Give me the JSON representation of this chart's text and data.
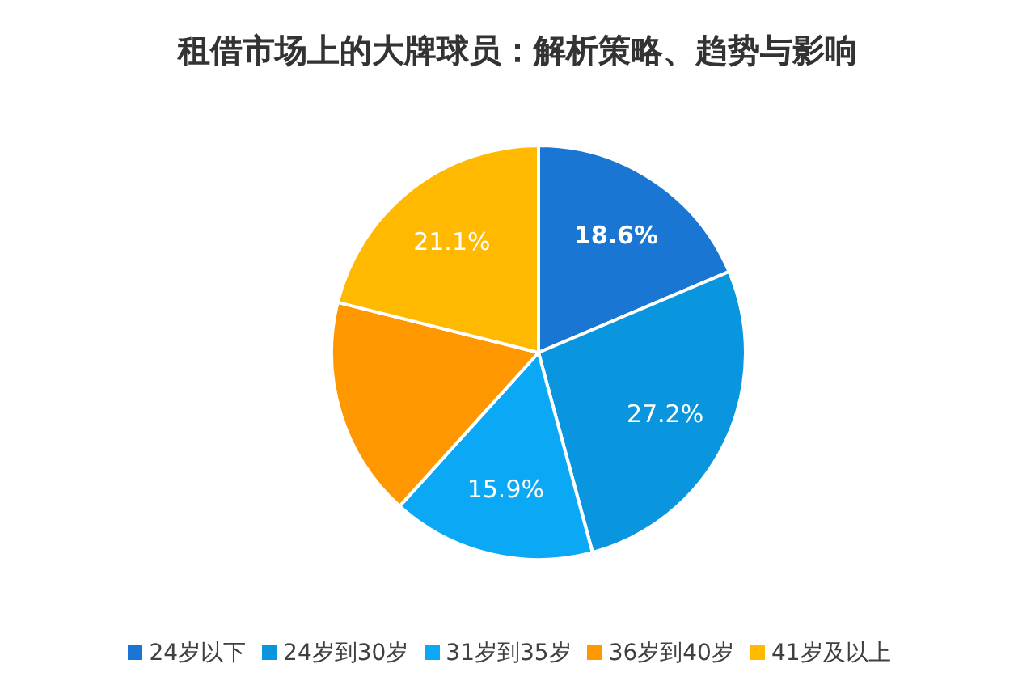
{
  "chart_data": {
    "type": "pie",
    "title": "租借市场上的大牌球员：解析策略、趋势与影响",
    "categories": [
      "24岁以下",
      "24岁到30岁",
      "31岁到35岁",
      "36岁到40岁",
      "41岁及以上"
    ],
    "values": [
      18.6,
      27.2,
      15.9,
      17.2,
      21.1
    ],
    "colors": [
      "#1976d2",
      "#0a96de",
      "#0aa8f5",
      "#ff9800",
      "#ffb900"
    ],
    "value_labels": [
      "18.6%",
      "27.2%",
      "15.9%",
      null,
      "21.1%"
    ],
    "legend": "bottom"
  }
}
